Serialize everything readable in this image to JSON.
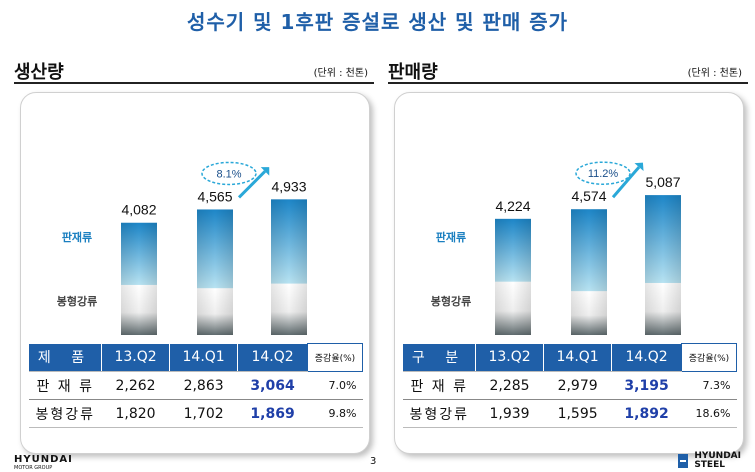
{
  "headline": "성수기 및 1후판 증설로 생산 및 판매 증가",
  "panels": [
    {
      "title": "생산량",
      "unit": "(단위 : 천톤)",
      "segment_labels": {
        "upper": "판재류",
        "lower": "봉형강류"
      },
      "growth_badge": "8.1%",
      "table": {
        "headers": [
          "제 품",
          "13.Q2",
          "14.Q1",
          "14.Q2",
          "증감율(%)"
        ],
        "rows": [
          [
            "판 재 류",
            "2,262",
            "2,863",
            "3,064",
            "7.0%"
          ],
          [
            "봉형강류",
            "1,820",
            "1,702",
            "1,869",
            "9.8%"
          ]
        ]
      }
    },
    {
      "title": "판매량",
      "unit": "(단위 : 천톤)",
      "segment_labels": {
        "upper": "판재류",
        "lower": "봉형강류"
      },
      "growth_badge": "11.2%",
      "table": {
        "headers": [
          "구 분",
          "13.Q2",
          "14.Q1",
          "14.Q2",
          "증감율(%)"
        ],
        "rows": [
          [
            "판 재 류",
            "2,285",
            "2,979",
            "3,195",
            "7.3%"
          ],
          [
            "봉형강류",
            "1,939",
            "1,595",
            "1,892",
            "18.6%"
          ]
        ]
      }
    }
  ],
  "chart_data": [
    {
      "type": "bar",
      "stacked": true,
      "title": "생산량",
      "unit": "천톤",
      "categories": [
        "13.Q2",
        "14.Q1",
        "14.Q2"
      ],
      "series": [
        {
          "name": "봉형강류",
          "values": [
            1820,
            1702,
            1869
          ]
        },
        {
          "name": "판재류",
          "values": [
            2262,
            2863,
            3064
          ]
        }
      ],
      "totals": [
        4082,
        4565,
        4933
      ],
      "total_labels": [
        "4,082",
        "4,565",
        "4,933"
      ]
    },
    {
      "type": "bar",
      "stacked": true,
      "title": "판매량",
      "unit": "천톤",
      "categories": [
        "13.Q2",
        "14.Q1",
        "14.Q2"
      ],
      "series": [
        {
          "name": "봉형강류",
          "values": [
            1939,
            1595,
            1892
          ]
        },
        {
          "name": "판재류",
          "values": [
            2285,
            2979,
            3195
          ]
        }
      ],
      "totals": [
        4224,
        4574,
        5087
      ],
      "total_labels": [
        "4,224",
        "4,574",
        "5,087"
      ]
    }
  ],
  "colors": {
    "accent": "#1f5fa8",
    "bar_top": "#1d86c8",
    "bar_bottom": "#b8e3f2",
    "badge": "#2aa8d8",
    "highlight": "#1f3fa8"
  },
  "footer": {
    "left_logo": "HYUNDAI",
    "left_logo_sub": "MOTOR GROUP",
    "page": "3",
    "right_logo_1": "HYUNDAI",
    "right_logo_2": "STEEL"
  }
}
